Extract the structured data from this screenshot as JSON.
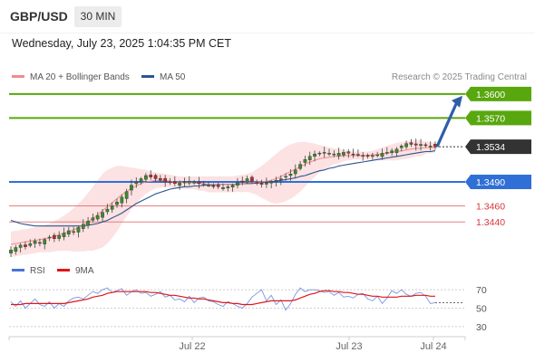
{
  "header": {
    "symbol": "GBP/USD",
    "timeframe": "30 MIN",
    "datetime": "Wednesday, July 23, 2025 1:04:35 PM CET"
  },
  "legend": {
    "ma20_label": "MA 20 + Bollinger Bands",
    "ma50_label": "MA 50",
    "ma20_color": "#f08c8c",
    "ma50_color": "#2b5592",
    "credit": "Research © 2025 Trading Central"
  },
  "rsi_legend": {
    "rsi_label": "RSI",
    "ma9_label": "9MA",
    "rsi_color": "#4a72d6",
    "ma9_color": "#e0161a"
  },
  "chart_data": [
    {
      "type": "candlestick",
      "timeframe": "30 MIN",
      "x_tick_labels": [
        "Jul 22",
        "Jul 23",
        "Jul 24"
      ],
      "ylim": [
        1.3395,
        1.361
      ],
      "last_price": 1.3534,
      "price_series": {
        "name": "GBP/USD",
        "values": [
          1.3405,
          1.3408,
          1.3411,
          1.3409,
          1.3413,
          1.3416,
          1.3414,
          1.3418,
          1.3421,
          1.3419,
          1.3423,
          1.3426,
          1.3429,
          1.3428,
          1.3433,
          1.3437,
          1.3441,
          1.3445,
          1.3448,
          1.3452,
          1.3456,
          1.346,
          1.3465,
          1.3471,
          1.3478,
          1.3486,
          1.349,
          1.3494,
          1.3498,
          1.3496,
          1.3494,
          1.3492,
          1.349,
          1.3489,
          1.3488,
          1.3489,
          1.349,
          1.3491,
          1.349,
          1.3488,
          1.3487,
          1.3486,
          1.3485,
          1.3484,
          1.3483,
          1.3484,
          1.3486,
          1.3489,
          1.3491,
          1.3494,
          1.3491,
          1.3488,
          1.3487,
          1.3489,
          1.349,
          1.3492,
          1.3494,
          1.3497,
          1.35,
          1.3505,
          1.3512,
          1.3518,
          1.3522,
          1.3525,
          1.3526,
          1.3527,
          1.3526,
          1.3525,
          1.3526,
          1.3527,
          1.3526,
          1.3525,
          1.3524,
          1.3523,
          1.3522,
          1.3523,
          1.3524,
          1.3526,
          1.3527,
          1.3529,
          1.3531,
          1.3535,
          1.3538,
          1.3537,
          1.3536,
          1.3537,
          1.3536,
          1.3535,
          1.3534
        ]
      },
      "ma20_bollinger": {
        "name": "MA 20 + Bollinger Bands",
        "ma20": [
          1.3412,
          1.3413,
          1.3414,
          1.3415,
          1.3416,
          1.3417,
          1.3418,
          1.3419,
          1.342,
          1.3422,
          1.3424,
          1.3426,
          1.3428,
          1.343,
          1.3433,
          1.3436,
          1.344,
          1.3444,
          1.3449,
          1.3454,
          1.3459,
          1.3464,
          1.3469,
          1.3474,
          1.3478,
          1.3482,
          1.3485,
          1.3488,
          1.349,
          1.3491,
          1.3492,
          1.3492,
          1.3492,
          1.3491,
          1.349,
          1.349,
          1.3489,
          1.3489,
          1.3489,
          1.3488,
          1.3488,
          1.3487,
          1.3487,
          1.3487,
          1.3487,
          1.3487,
          1.3487,
          1.3488,
          1.3488,
          1.3489,
          1.3489,
          1.349,
          1.349,
          1.3491,
          1.3492,
          1.3494,
          1.3497,
          1.35,
          1.3503,
          1.3506,
          1.3509,
          1.3512,
          1.3515,
          1.3517,
          1.3519,
          1.352,
          1.3521,
          1.3522,
          1.3522,
          1.3523,
          1.3523,
          1.3523,
          1.3523,
          1.3523,
          1.3523,
          1.3524,
          1.3524,
          1.3525,
          1.3526,
          1.3527,
          1.3528,
          1.3529,
          1.353,
          1.3531,
          1.3532,
          1.3532,
          1.3533,
          1.3533,
          1.3533
        ],
        "upper": [
          1.3428,
          1.3429,
          1.343,
          1.3431,
          1.3432,
          1.3433,
          1.3434,
          1.3436,
          1.3438,
          1.3441,
          1.3444,
          1.3448,
          1.3452,
          1.3457,
          1.3463,
          1.3469,
          1.3476,
          1.3484,
          1.3492,
          1.35,
          1.3505,
          1.3508,
          1.351,
          1.351,
          1.3509,
          1.3508,
          1.3507,
          1.3506,
          1.3505,
          1.3503,
          1.3502,
          1.3501,
          1.35,
          1.3499,
          1.3498,
          1.3497,
          1.3497,
          1.3497,
          1.3497,
          1.3497,
          1.3497,
          1.3497,
          1.3497,
          1.3497,
          1.3497,
          1.3497,
          1.3497,
          1.3498,
          1.3499,
          1.35,
          1.3502,
          1.3506,
          1.351,
          1.3515,
          1.352,
          1.3525,
          1.353,
          1.3534,
          1.3537,
          1.3539,
          1.354,
          1.354,
          1.3539,
          1.3538,
          1.3536,
          1.3535,
          1.3533,
          1.3532,
          1.3531,
          1.353,
          1.3529,
          1.3528,
          1.3528,
          1.3528,
          1.3528,
          1.3529,
          1.3531,
          1.3533,
          1.3535,
          1.3537,
          1.3539,
          1.354,
          1.3541,
          1.3542,
          1.3542,
          1.3542,
          1.3541,
          1.354,
          1.3539
        ],
        "lower": [
          1.3396,
          1.3397,
          1.3398,
          1.3399,
          1.34,
          1.3401,
          1.3402,
          1.3402,
          1.3402,
          1.3403,
          1.3404,
          1.3404,
          1.3404,
          1.3403,
          1.3403,
          1.3403,
          1.3404,
          1.3404,
          1.3406,
          1.3408,
          1.3413,
          1.342,
          1.3428,
          1.3438,
          1.3447,
          1.3456,
          1.3463,
          1.347,
          1.3475,
          1.3479,
          1.3482,
          1.3483,
          1.3484,
          1.3483,
          1.3482,
          1.3483,
          1.3481,
          1.3481,
          1.3481,
          1.3479,
          1.3479,
          1.3477,
          1.3477,
          1.3477,
          1.3477,
          1.3477,
          1.3477,
          1.3478,
          1.3477,
          1.3478,
          1.3476,
          1.3474,
          1.347,
          1.3467,
          1.3464,
          1.3463,
          1.3464,
          1.3466,
          1.3469,
          1.3473,
          1.3478,
          1.3484,
          1.3491,
          1.3496,
          1.3502,
          1.3505,
          1.3509,
          1.3512,
          1.3513,
          1.3516,
          1.3517,
          1.3518,
          1.3518,
          1.3518,
          1.3518,
          1.3519,
          1.3517,
          1.3517,
          1.3517,
          1.3517,
          1.3517,
          1.3518,
          1.3519,
          1.352,
          1.3522,
          1.3522,
          1.3525,
          1.3526,
          1.3527
        ]
      },
      "ma50": {
        "name": "MA 50",
        "values": [
          1.3442,
          1.344,
          1.3438,
          1.3437,
          1.3436,
          1.3435,
          1.3435,
          1.3435,
          1.3435,
          1.3435,
          1.3435,
          1.3435,
          1.3435,
          1.3435,
          1.3435,
          1.3435,
          1.3436,
          1.3437,
          1.3438,
          1.344,
          1.3442,
          1.3445,
          1.3448,
          1.3451,
          1.3455,
          1.3459,
          1.3463,
          1.3466,
          1.3469,
          1.3472,
          1.3475,
          1.3477,
          1.3479,
          1.3481,
          1.3482,
          1.3483,
          1.3484,
          1.3484,
          1.3485,
          1.3485,
          1.3486,
          1.3486,
          1.3486,
          1.3487,
          1.3487,
          1.3487,
          1.3487,
          1.3487,
          1.3488,
          1.3488,
          1.3488,
          1.3489,
          1.3489,
          1.349,
          1.349,
          1.3491,
          1.3492,
          1.3493,
          1.3494,
          1.3495,
          1.3497,
          1.3498,
          1.35,
          1.3502,
          1.3504,
          1.3505,
          1.3507,
          1.3508,
          1.351,
          1.3511,
          1.3512,
          1.3513,
          1.3514,
          1.3515,
          1.3516,
          1.3517,
          1.3518,
          1.3519,
          1.352,
          1.3521,
          1.3522,
          1.3523,
          1.3524,
          1.3525,
          1.3526,
          1.3527,
          1.3528,
          1.3528,
          1.3529
        ]
      },
      "levels": [
        {
          "value": 1.36,
          "label": "1.3600",
          "kind": "resistance",
          "color": "#58a70e"
        },
        {
          "value": 1.357,
          "label": "1.3570",
          "kind": "resistance",
          "color": "#58a70e"
        },
        {
          "value": 1.3534,
          "label": "1.3534",
          "kind": "last",
          "color": "#333333"
        },
        {
          "value": 1.349,
          "label": "1.3490",
          "kind": "pivot",
          "color": "#2f6fd6"
        },
        {
          "value": 1.346,
          "label": "1.3460",
          "kind": "support",
          "color": "#e26a6a"
        },
        {
          "value": 1.344,
          "label": "1.3440",
          "kind": "support",
          "color": "#e26a6a"
        }
      ],
      "projection": {
        "from_price": 1.3534,
        "to_price": 1.36,
        "direction": "up",
        "color": "#2e5ea8"
      }
    },
    {
      "type": "line",
      "title": "RSI",
      "ylim": [
        25,
        78
      ],
      "y_ticks": [
        30,
        50,
        70
      ],
      "y_tick_labels": [
        "30",
        "50",
        "70"
      ],
      "series": [
        {
          "name": "RSI",
          "values": [
            57,
            52,
            58,
            50,
            55,
            60,
            54,
            52,
            57,
            50,
            55,
            52,
            58,
            61,
            62,
            60,
            64,
            68,
            66,
            70,
            72,
            67,
            69,
            71,
            64,
            68,
            70,
            66,
            67,
            63,
            65,
            68,
            62,
            64,
            59,
            60,
            57,
            63,
            56,
            61,
            62,
            58,
            57,
            54,
            52,
            57,
            55,
            52,
            50,
            55,
            62,
            66,
            70,
            58,
            64,
            54,
            59,
            48,
            55,
            65,
            72,
            68,
            70,
            70,
            69,
            67,
            68,
            64,
            67,
            62,
            63,
            61,
            65,
            66,
            60,
            58,
            63,
            55,
            61,
            69,
            66,
            70,
            65,
            63,
            66,
            67,
            63,
            55,
            56
          ]
        },
        {
          "name": "9MA",
          "values": [
            54,
            54,
            54,
            55,
            55,
            55,
            55,
            55,
            55,
            55,
            55,
            55,
            56,
            57,
            58,
            59,
            60,
            62,
            63,
            64,
            66,
            67,
            68,
            68,
            68,
            68,
            68,
            68,
            68,
            67,
            67,
            66,
            65,
            64,
            64,
            63,
            62,
            61,
            61,
            60,
            60,
            59,
            58,
            57,
            56,
            56,
            55,
            55,
            54,
            54,
            54,
            55,
            56,
            57,
            58,
            58,
            58,
            58,
            58,
            59,
            61,
            63,
            65,
            66,
            68,
            69,
            69,
            68,
            68,
            67,
            67,
            66,
            65,
            65,
            64,
            63,
            63,
            62,
            62,
            62,
            62,
            63,
            63,
            63,
            64,
            64,
            64,
            63,
            63
          ]
        }
      ]
    }
  ]
}
